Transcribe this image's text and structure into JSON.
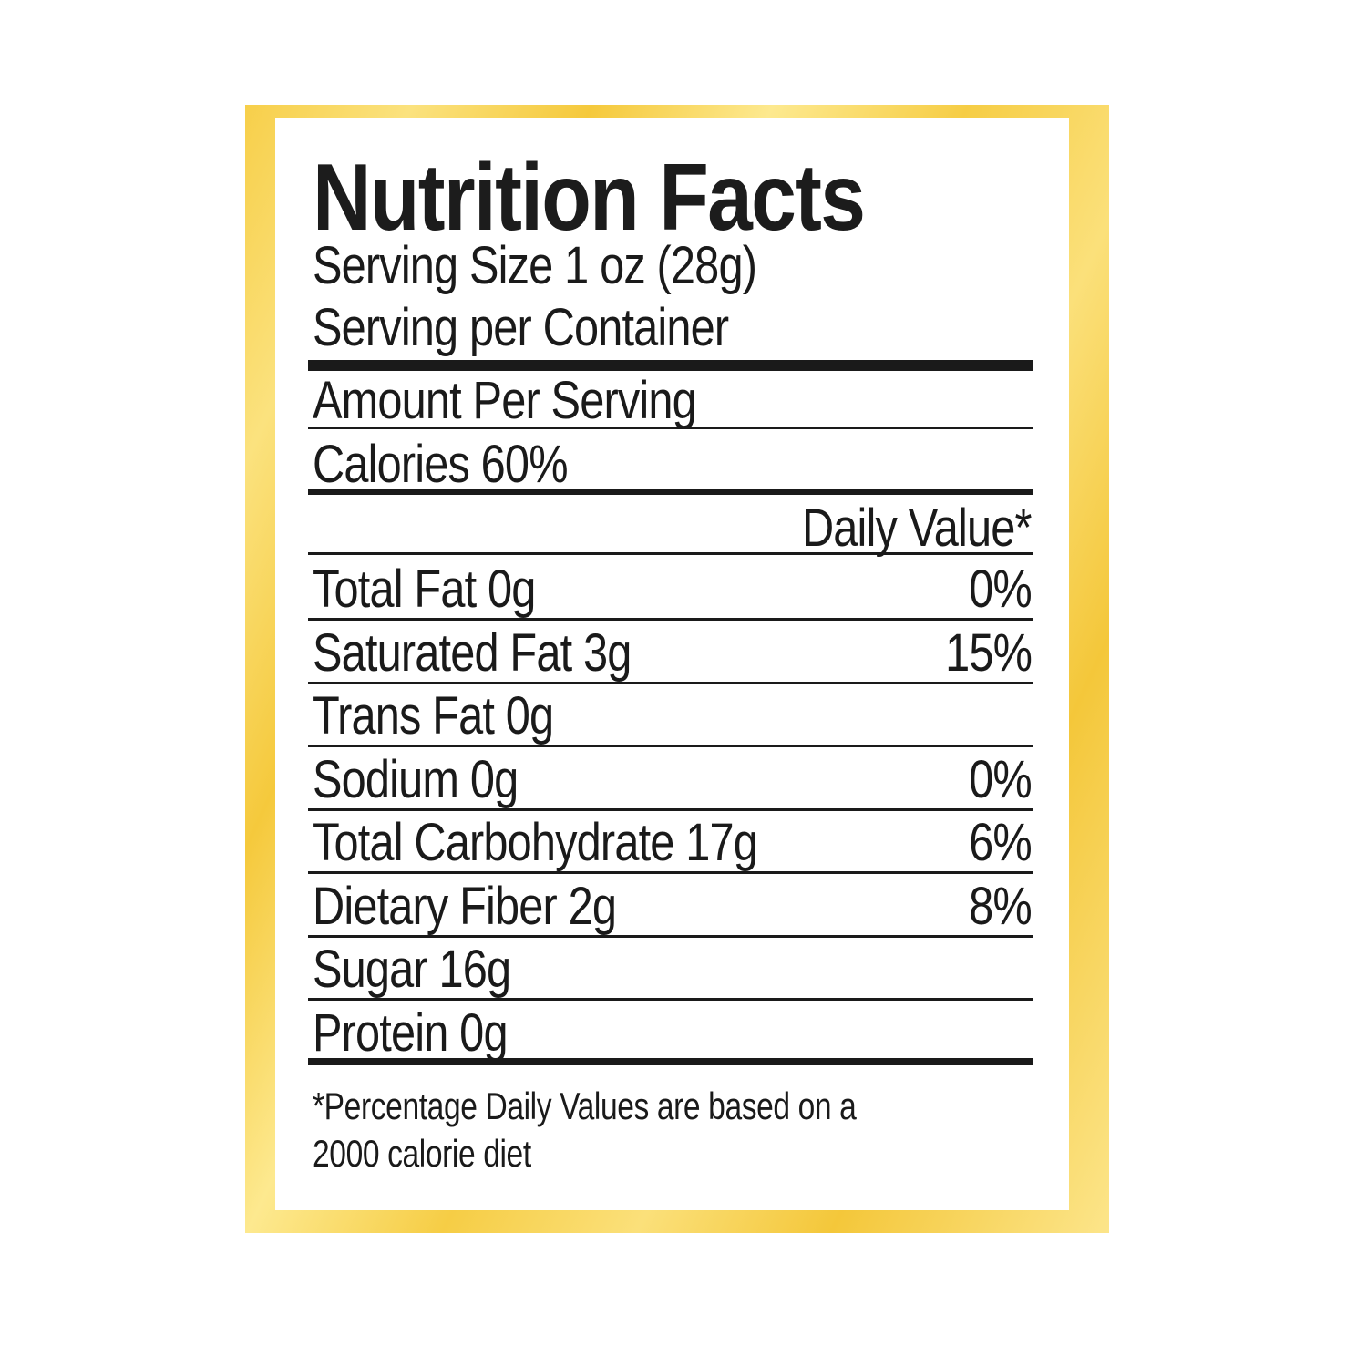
{
  "label": {
    "title": "Nutrition Facts",
    "serving_size": "Serving Size 1 oz (28g)",
    "servings_per_container": "Serving per Container",
    "amount_per_serving": "Amount Per Serving",
    "calories": "Calories 60%",
    "daily_value_header": "Daily Value*",
    "nutrients": [
      {
        "name": "Total Fat 0g",
        "dv": "0%"
      },
      {
        "name": "Saturated Fat 3g",
        "dv": "15%"
      },
      {
        "name": "Trans Fat 0g",
        "dv": ""
      },
      {
        "name": "Sodium 0g",
        "dv": "0%"
      },
      {
        "name": "Total Carbohydrate 17g",
        "dv": "6%"
      },
      {
        "name": "Dietary Fiber 2g",
        "dv": "8%"
      },
      {
        "name": "Sugar 16g",
        "dv": ""
      },
      {
        "name": "Protein 0g",
        "dv": ""
      }
    ],
    "footnote_line1": "*Percentage Daily Values are based on a",
    "footnote_line2": "2000 calorie diet"
  },
  "colors": {
    "frame": "#f7cf4a",
    "panel": "#ffffff",
    "text": "#1a1a1a"
  }
}
